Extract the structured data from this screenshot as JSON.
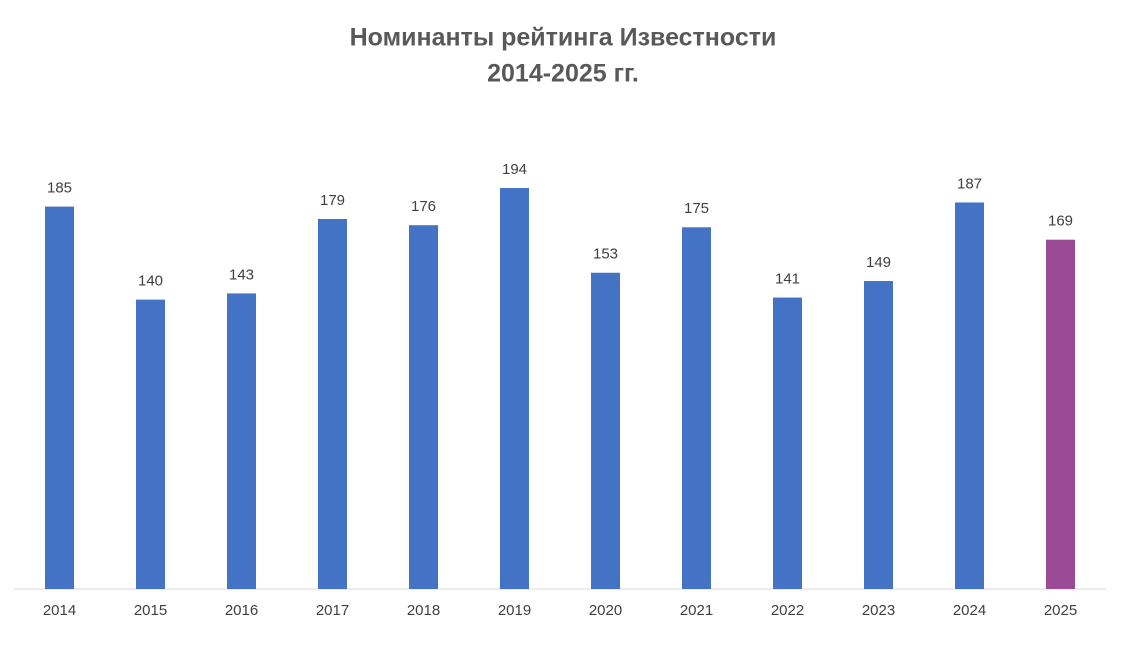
{
  "chart_data": {
    "type": "bar",
    "title": [
      "Номинанты рейтинга Известности",
      "2014-2025 гг."
    ],
    "categories": [
      "2014",
      "2015",
      "2016",
      "2017",
      "2018",
      "2019",
      "2020",
      "2021",
      "2022",
      "2023",
      "2024",
      "2025"
    ],
    "values": [
      185,
      140,
      143,
      179,
      176,
      194,
      153,
      175,
      141,
      149,
      187,
      169
    ],
    "colors": [
      "#4472c4",
      "#4472c4",
      "#4472c4",
      "#4472c4",
      "#4472c4",
      "#4472c4",
      "#4472c4",
      "#4472c4",
      "#4472c4",
      "#4472c4",
      "#4472c4",
      "#9b4a96"
    ],
    "grid": false
  }
}
